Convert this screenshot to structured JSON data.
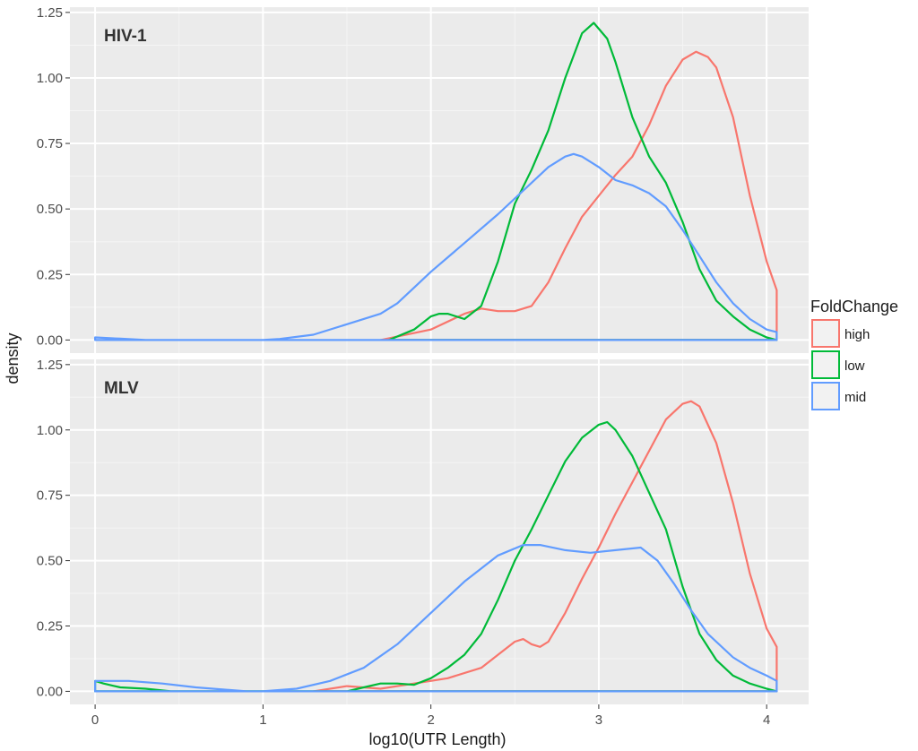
{
  "chart_data": {
    "type": "line",
    "xlabel": "log10(UTR Length)",
    "ylabel": "density",
    "xlim": [
      -0.15,
      4.25
    ],
    "ylim": [
      -0.05,
      1.27
    ],
    "x_ticks": [
      0,
      1,
      2,
      3,
      4
    ],
    "x_tick_labels": [
      "0",
      "1",
      "2",
      "3",
      "4"
    ],
    "y_ticks": [
      0,
      0.25,
      0.5,
      0.75,
      1.0,
      1.25
    ],
    "y_tick_labels": [
      "0.00",
      "0.25",
      "0.50",
      "0.75",
      "1.00",
      "1.25"
    ],
    "grid": true,
    "legend": {
      "title": "FoldChange",
      "position": "right",
      "entries": [
        {
          "name": "high",
          "color": "#F8766D"
        },
        {
          "name": "low",
          "color": "#00BA38"
        },
        {
          "name": "mid",
          "color": "#619CFF"
        }
      ]
    },
    "panels": [
      {
        "label": "HIV-1",
        "series": [
          {
            "name": "high",
            "color": "#F8766D",
            "x": [
              1.7,
              2.0,
              2.2,
              2.3,
              2.4,
              2.5,
              2.6,
              2.7,
              2.8,
              2.9,
              3.0,
              3.1,
              3.2,
              3.3,
              3.4,
              3.5,
              3.58,
              3.65,
              3.7,
              3.8,
              3.9,
              4.0,
              4.06
            ],
            "y": [
              0.0,
              0.04,
              0.1,
              0.12,
              0.11,
              0.11,
              0.13,
              0.22,
              0.35,
              0.47,
              0.55,
              0.63,
              0.7,
              0.82,
              0.97,
              1.07,
              1.1,
              1.08,
              1.04,
              0.85,
              0.55,
              0.3,
              0.19
            ]
          },
          {
            "name": "low",
            "color": "#00BA38",
            "x": [
              1.75,
              1.9,
              2.0,
              2.05,
              2.1,
              2.2,
              2.3,
              2.4,
              2.5,
              2.6,
              2.7,
              2.8,
              2.9,
              2.97,
              3.05,
              3.1,
              3.2,
              3.3,
              3.4,
              3.5,
              3.6,
              3.7,
              3.8,
              3.9,
              4.0,
              4.06
            ],
            "y": [
              0.0,
              0.04,
              0.09,
              0.1,
              0.1,
              0.08,
              0.13,
              0.3,
              0.52,
              0.65,
              0.8,
              1.0,
              1.17,
              1.21,
              1.15,
              1.06,
              0.85,
              0.7,
              0.6,
              0.45,
              0.27,
              0.15,
              0.09,
              0.04,
              0.01,
              0.0
            ]
          },
          {
            "name": "mid",
            "color": "#619CFF",
            "x": [
              0.0,
              0.15,
              0.3,
              0.5,
              0.8,
              1.0,
              1.1,
              1.3,
              1.5,
              1.7,
              1.8,
              1.9,
              2.0,
              2.2,
              2.4,
              2.6,
              2.7,
              2.8,
              2.85,
              2.9,
              3.0,
              3.1,
              3.2,
              3.3,
              3.4,
              3.5,
              3.6,
              3.7,
              3.8,
              3.9,
              4.0,
              4.06
            ],
            "y": [
              0.01,
              0.005,
              0.0,
              0.0,
              0.0,
              0.0,
              0.004,
              0.02,
              0.06,
              0.1,
              0.14,
              0.2,
              0.26,
              0.37,
              0.48,
              0.6,
              0.66,
              0.7,
              0.71,
              0.7,
              0.66,
              0.61,
              0.59,
              0.56,
              0.51,
              0.42,
              0.32,
              0.22,
              0.14,
              0.08,
              0.04,
              0.03
            ]
          }
        ]
      },
      {
        "label": "MLV",
        "series": [
          {
            "name": "high",
            "color": "#F8766D",
            "x": [
              1.3,
              1.5,
              1.7,
              1.9,
              2.1,
              2.3,
              2.4,
              2.5,
              2.55,
              2.6,
              2.65,
              2.7,
              2.8,
              2.9,
              3.0,
              3.1,
              3.2,
              3.3,
              3.4,
              3.5,
              3.55,
              3.6,
              3.7,
              3.8,
              3.9,
              4.0,
              4.06
            ],
            "y": [
              0.0,
              0.02,
              0.01,
              0.03,
              0.05,
              0.09,
              0.14,
              0.19,
              0.2,
              0.18,
              0.17,
              0.19,
              0.3,
              0.43,
              0.55,
              0.68,
              0.8,
              0.92,
              1.04,
              1.1,
              1.11,
              1.09,
              0.95,
              0.72,
              0.45,
              0.24,
              0.17
            ]
          },
          {
            "name": "low",
            "color": "#00BA38",
            "x": [
              0.0,
              0.05,
              0.15,
              0.3,
              0.45,
              1.5,
              1.6,
              1.7,
              1.8,
              1.9,
              2.0,
              2.1,
              2.2,
              2.3,
              2.4,
              2.5,
              2.6,
              2.7,
              2.8,
              2.9,
              3.0,
              3.05,
              3.1,
              3.2,
              3.3,
              3.4,
              3.5,
              3.6,
              3.7,
              3.8,
              3.9,
              4.0,
              4.06
            ],
            "y": [
              0.04,
              0.03,
              0.015,
              0.01,
              0.0,
              0.0,
              0.015,
              0.03,
              0.03,
              0.025,
              0.05,
              0.09,
              0.14,
              0.22,
              0.35,
              0.5,
              0.62,
              0.75,
              0.88,
              0.97,
              1.02,
              1.03,
              1.0,
              0.9,
              0.76,
              0.62,
              0.4,
              0.22,
              0.12,
              0.06,
              0.03,
              0.01,
              0.0
            ]
          },
          {
            "name": "mid",
            "color": "#619CFF",
            "x": [
              0.0,
              0.2,
              0.4,
              0.6,
              0.9,
              1.0,
              1.2,
              1.4,
              1.6,
              1.8,
              2.0,
              2.2,
              2.4,
              2.55,
              2.65,
              2.8,
              2.95,
              3.1,
              3.25,
              3.35,
              3.45,
              3.55,
              3.65,
              3.8,
              3.9,
              4.0,
              4.06
            ],
            "y": [
              0.04,
              0.04,
              0.03,
              0.015,
              0.0,
              0.0,
              0.01,
              0.04,
              0.09,
              0.18,
              0.3,
              0.42,
              0.52,
              0.56,
              0.56,
              0.54,
              0.53,
              0.54,
              0.55,
              0.5,
              0.41,
              0.31,
              0.22,
              0.13,
              0.09,
              0.06,
              0.04
            ]
          }
        ]
      }
    ]
  }
}
